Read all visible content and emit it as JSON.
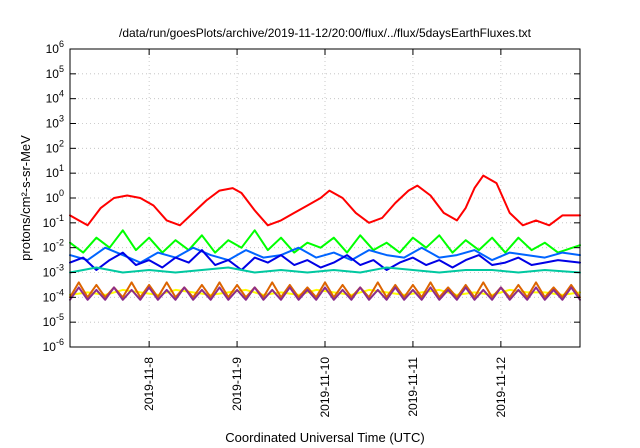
{
  "chart_data": {
    "type": "line",
    "title": "/data/run/goesPlots/archive/2019-11-12/20:00/flux/../flux/5daysEarthFluxes.txt",
    "xlabel": "Coordinated Universal Time (UTC)",
    "ylabel": "protons/cm²-s-sr-MeV",
    "y_scale": "log",
    "ylim_exp": [
      -6,
      6
    ],
    "y_ticks": [
      {
        "base": "10",
        "exp": "-6"
      },
      {
        "base": "10",
        "exp": "-5"
      },
      {
        "base": "10",
        "exp": "-4"
      },
      {
        "base": "10",
        "exp": "-3"
      },
      {
        "base": "10",
        "exp": "-2"
      },
      {
        "base": "10",
        "exp": "-1"
      },
      {
        "base": "10",
        "exp": "0"
      },
      {
        "base": "10",
        "exp": "1"
      },
      {
        "base": "10",
        "exp": "2"
      },
      {
        "base": "10",
        "exp": "3"
      },
      {
        "base": "10",
        "exp": "4"
      },
      {
        "base": "10",
        "exp": "5"
      },
      {
        "base": "10",
        "exp": "6"
      }
    ],
    "x_range_days": [
      7.1,
      12.9
    ],
    "x_ticks": [
      {
        "label": "2019-11-8",
        "day": 8
      },
      {
        "label": "2019-11-9",
        "day": 9
      },
      {
        "label": "2019-11-10",
        "day": 10
      },
      {
        "label": "2019-11-11",
        "day": 11
      },
      {
        "label": "2019-11-12",
        "day": 12
      }
    ],
    "grid": true,
    "series": [
      {
        "color": "#ff0000",
        "day": [
          7.1,
          7.2,
          7.3,
          7.45,
          7.6,
          7.75,
          7.9,
          8.05,
          8.2,
          8.35,
          8.5,
          8.65,
          8.8,
          8.95,
          9.05,
          9.2,
          9.35,
          9.5,
          9.65,
          9.8,
          9.95,
          10.05,
          10.2,
          10.35,
          10.5,
          10.65,
          10.8,
          10.95,
          11.05,
          11.2,
          11.35,
          11.5,
          11.6,
          11.7,
          11.8,
          11.95,
          12.1,
          12.25,
          12.4,
          12.55,
          12.7,
          12.9
        ],
        "log10": [
          -0.7,
          -0.9,
          -1.1,
          -0.4,
          0.0,
          0.1,
          0.0,
          -0.3,
          -0.9,
          -1.1,
          -0.6,
          -0.1,
          0.3,
          0.4,
          0.2,
          -0.5,
          -1.1,
          -0.9,
          -0.6,
          -0.3,
          0.0,
          0.3,
          0.0,
          -0.6,
          -1.0,
          -0.8,
          -0.2,
          0.3,
          0.5,
          0.1,
          -0.6,
          -0.9,
          -0.4,
          0.4,
          0.9,
          0.6,
          -0.6,
          -1.1,
          -0.9,
          -1.1,
          -0.7,
          -0.7
        ]
      },
      {
        "color": "#00ff00",
        "day": [
          7.1,
          7.25,
          7.4,
          7.55,
          7.7,
          7.85,
          8.0,
          8.15,
          8.3,
          8.45,
          8.6,
          8.75,
          8.9,
          9.05,
          9.2,
          9.35,
          9.5,
          9.65,
          9.8,
          9.95,
          10.1,
          10.25,
          10.4,
          10.55,
          10.7,
          10.85,
          11.0,
          11.15,
          11.3,
          11.45,
          11.6,
          11.75,
          11.9,
          12.05,
          12.2,
          12.35,
          12.5,
          12.65,
          12.9
        ],
        "log10": [
          -1.8,
          -2.2,
          -1.6,
          -2.0,
          -1.3,
          -2.1,
          -1.6,
          -2.2,
          -1.7,
          -2.1,
          -1.5,
          -2.2,
          -1.7,
          -2.0,
          -1.3,
          -2.1,
          -1.6,
          -2.2,
          -1.8,
          -2.0,
          -1.6,
          -2.2,
          -1.5,
          -2.1,
          -1.8,
          -2.2,
          -1.6,
          -2.0,
          -1.5,
          -2.2,
          -1.7,
          -2.1,
          -1.6,
          -2.2,
          -1.6,
          -2.1,
          -1.8,
          -2.2,
          -1.9
        ]
      },
      {
        "color": "#0064ff",
        "day": [
          7.1,
          7.3,
          7.5,
          7.7,
          7.9,
          8.1,
          8.3,
          8.5,
          8.7,
          8.9,
          9.1,
          9.3,
          9.5,
          9.7,
          9.9,
          10.1,
          10.3,
          10.5,
          10.7,
          10.9,
          11.1,
          11.3,
          11.5,
          11.7,
          11.9,
          12.1,
          12.3,
          12.5,
          12.7,
          12.9
        ],
        "log10": [
          -2.3,
          -2.5,
          -2.0,
          -2.3,
          -2.6,
          -2.2,
          -2.4,
          -2.0,
          -2.3,
          -2.5,
          -2.1,
          -2.4,
          -2.3,
          -2.0,
          -2.4,
          -2.2,
          -2.5,
          -2.1,
          -2.3,
          -2.4,
          -2.0,
          -2.4,
          -2.3,
          -2.1,
          -2.5,
          -2.2,
          -2.3,
          -2.4,
          -2.2,
          -2.3
        ]
      },
      {
        "color": "#0000e6",
        "day": [
          7.1,
          7.25,
          7.4,
          7.55,
          7.7,
          7.85,
          8.0,
          8.15,
          8.3,
          8.45,
          8.6,
          8.75,
          8.9,
          9.05,
          9.2,
          9.35,
          9.5,
          9.65,
          9.8,
          9.95,
          10.1,
          10.25,
          10.4,
          10.55,
          10.7,
          10.85,
          11.0,
          11.15,
          11.3,
          11.45,
          11.6,
          11.75,
          11.9,
          12.05,
          12.2,
          12.35,
          12.5,
          12.65,
          12.9
        ],
        "log10": [
          -2.6,
          -2.4,
          -2.9,
          -2.5,
          -2.2,
          -2.7,
          -2.5,
          -2.8,
          -2.4,
          -2.6,
          -2.1,
          -2.7,
          -2.5,
          -2.9,
          -2.4,
          -2.6,
          -2.3,
          -2.7,
          -2.5,
          -2.8,
          -2.6,
          -2.3,
          -2.7,
          -2.5,
          -2.9,
          -2.6,
          -2.4,
          -2.7,
          -2.5,
          -2.8,
          -2.5,
          -2.3,
          -2.7,
          -2.6,
          -2.4,
          -2.7,
          -2.6,
          -2.5,
          -2.6
        ]
      },
      {
        "color": "#00c8a0",
        "day": [
          7.1,
          7.4,
          7.7,
          8.0,
          8.3,
          8.6,
          8.9,
          9.2,
          9.5,
          9.8,
          10.1,
          10.4,
          10.7,
          11.0,
          11.3,
          11.6,
          11.9,
          12.2,
          12.5,
          12.9
        ],
        "log10": [
          -3.0,
          -2.8,
          -3.0,
          -2.9,
          -3.0,
          -2.9,
          -2.8,
          -3.0,
          -2.9,
          -3.0,
          -2.9,
          -3.0,
          -2.8,
          -2.9,
          -3.0,
          -2.9,
          -2.9,
          -3.0,
          -2.9,
          -3.0
        ]
      },
      {
        "color": "#ffff00",
        "day": [
          7.1,
          7.3,
          7.5,
          7.7,
          7.9,
          8.1,
          8.3,
          8.5,
          8.7,
          8.9,
          9.1,
          9.3,
          9.5,
          9.7,
          9.9,
          10.1,
          10.3,
          10.5,
          10.7,
          10.9,
          11.1,
          11.3,
          11.5,
          11.7,
          11.9,
          12.1,
          12.3,
          12.5,
          12.7,
          12.9
        ],
        "log10": [
          -3.9,
          -3.8,
          -3.9,
          -3.7,
          -3.8,
          -3.9,
          -3.7,
          -3.8,
          -3.9,
          -3.8,
          -3.7,
          -3.9,
          -3.8,
          -3.9,
          -3.7,
          -3.8,
          -3.9,
          -3.7,
          -3.8,
          -3.9,
          -3.8,
          -3.7,
          -3.9,
          -3.8,
          -3.9,
          -3.7,
          -3.8,
          -3.8,
          -3.9,
          -3.8
        ]
      },
      {
        "color": "#dc6400",
        "day": [
          7.1,
          7.2,
          7.3,
          7.4,
          7.5,
          7.6,
          7.7,
          7.8,
          7.9,
          8.0,
          8.1,
          8.2,
          8.3,
          8.4,
          8.5,
          8.6,
          8.7,
          8.8,
          8.9,
          9.0,
          9.1,
          9.2,
          9.3,
          9.4,
          9.5,
          9.6,
          9.7,
          9.8,
          9.9,
          10.0,
          10.1,
          10.2,
          10.3,
          10.4,
          10.5,
          10.6,
          10.7,
          10.8,
          10.9,
          11.0,
          11.1,
          11.2,
          11.3,
          11.4,
          11.5,
          11.6,
          11.7,
          11.8,
          11.9,
          12.0,
          12.1,
          12.2,
          12.3,
          12.4,
          12.5,
          12.6,
          12.7,
          12.8,
          12.9
        ],
        "log10": [
          -4.0,
          -3.4,
          -4.0,
          -3.5,
          -4.0,
          -3.6,
          -4.0,
          -3.4,
          -4.0,
          -3.5,
          -4.0,
          -3.4,
          -4.0,
          -3.6,
          -4.0,
          -3.5,
          -4.0,
          -3.4,
          -4.0,
          -3.5,
          -4.0,
          -3.6,
          -4.0,
          -3.4,
          -4.0,
          -3.5,
          -4.0,
          -3.6,
          -4.0,
          -3.4,
          -4.0,
          -3.5,
          -4.0,
          -3.6,
          -4.0,
          -3.4,
          -4.0,
          -3.5,
          -4.0,
          -3.5,
          -4.0,
          -3.4,
          -4.0,
          -3.6,
          -4.0,
          -3.5,
          -4.0,
          -3.4,
          -4.0,
          -3.6,
          -4.0,
          -3.5,
          -4.0,
          -3.4,
          -4.0,
          -3.6,
          -4.0,
          -3.5,
          -4.0
        ]
      },
      {
        "color": "#8c2d8c",
        "day": [
          7.1,
          7.2,
          7.3,
          7.4,
          7.5,
          7.6,
          7.7,
          7.8,
          7.9,
          8.0,
          8.1,
          8.2,
          8.3,
          8.4,
          8.5,
          8.6,
          8.7,
          8.8,
          8.9,
          9.0,
          9.1,
          9.2,
          9.3,
          9.4,
          9.5,
          9.6,
          9.7,
          9.8,
          9.9,
          10.0,
          10.1,
          10.2,
          10.3,
          10.4,
          10.5,
          10.6,
          10.7,
          10.8,
          10.9,
          11.0,
          11.1,
          11.2,
          11.3,
          11.4,
          11.5,
          11.6,
          11.7,
          11.8,
          11.9,
          12.0,
          12.1,
          12.2,
          12.3,
          12.4,
          12.5,
          12.6,
          12.7,
          12.8,
          12.9
        ],
        "log10": [
          -4.1,
          -3.6,
          -4.1,
          -3.7,
          -4.1,
          -3.6,
          -4.1,
          -3.7,
          -4.1,
          -3.6,
          -4.1,
          -3.7,
          -4.1,
          -3.6,
          -4.1,
          -3.7,
          -4.1,
          -3.6,
          -4.1,
          -3.7,
          -4.1,
          -3.6,
          -4.1,
          -3.7,
          -4.1,
          -3.6,
          -4.1,
          -3.7,
          -4.1,
          -3.6,
          -4.1,
          -3.7,
          -4.1,
          -3.6,
          -4.1,
          -3.7,
          -4.1,
          -3.6,
          -4.1,
          -3.7,
          -4.1,
          -3.6,
          -4.1,
          -3.7,
          -4.1,
          -3.6,
          -4.1,
          -3.7,
          -4.1,
          -3.6,
          -4.1,
          -3.7,
          -4.1,
          -3.6,
          -4.1,
          -3.7,
          -4.1,
          -3.6,
          -4.1
        ]
      }
    ]
  }
}
